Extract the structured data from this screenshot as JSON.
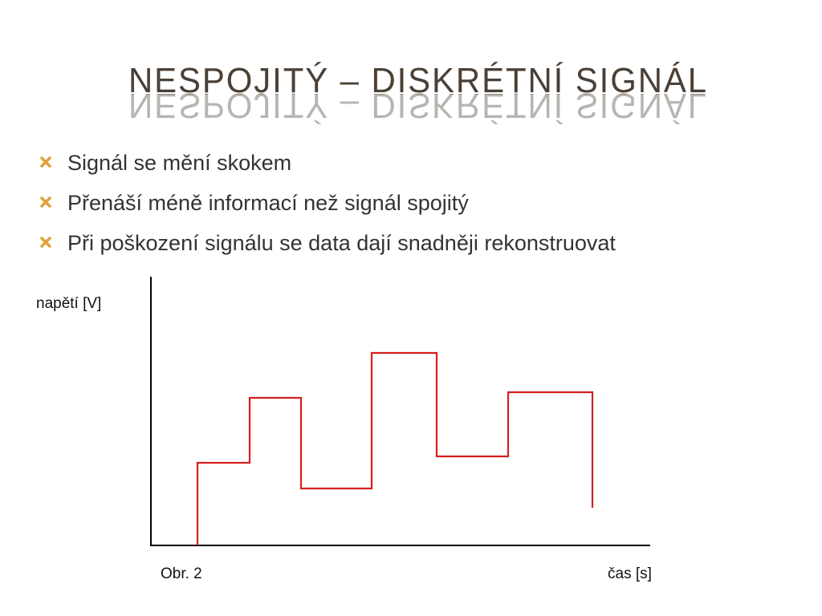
{
  "slide": {
    "title": "NESPOJITÝ – DISKRÉTNÍ SIGNÁL",
    "bullets": [
      "Signál se mění skokem",
      "Přenáší méně informací než signál spojitý",
      "Při poškození signálu se data dají snadněji rekonstruovat"
    ],
    "figure": {
      "y_label": "napětí [V]",
      "x_label": "čas [s]",
      "caption": "Obr. 2"
    }
  }
}
